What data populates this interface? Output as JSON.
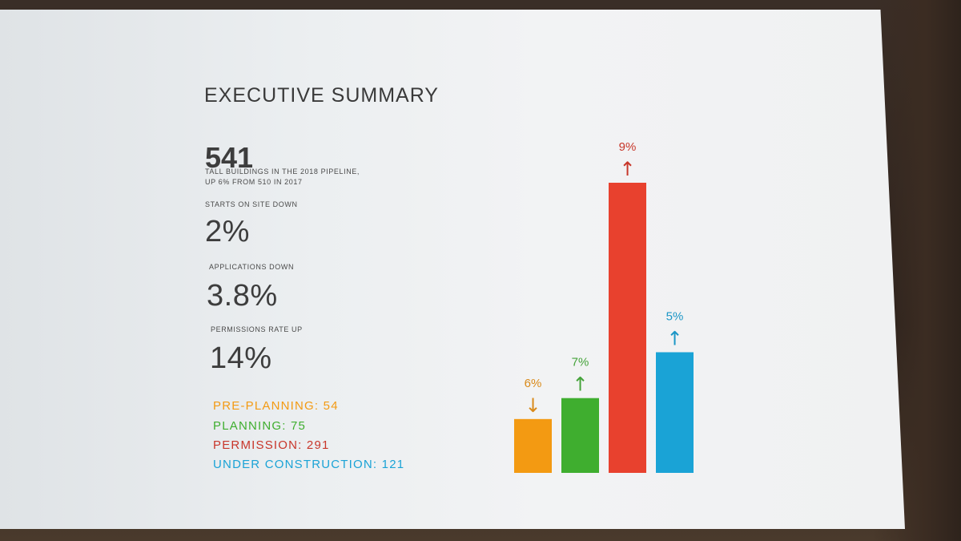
{
  "slide": {
    "title": "EXECUTIVE SUMMARY",
    "headline_number": "541",
    "headline_caption_1": "TALL BUILDINGS IN THE 2018 PIPELINE,",
    "headline_caption_2": "UP 6% FROM 510 IN 2017",
    "stats": [
      {
        "label": "STARTS ON SITE DOWN",
        "value": "2%"
      },
      {
        "label": "APPLICATIONS DOWN",
        "value": "3.8%"
      },
      {
        "label": "PERMISSIONS RATE UP",
        "value": "14%"
      }
    ],
    "legend": [
      {
        "text": "PRE-PLANNING: 54",
        "color": "#f39a12"
      },
      {
        "text": "PLANNING: 75",
        "color": "#3fae2f"
      },
      {
        "text": "PERMISSION: 291",
        "color": "#c8362a"
      },
      {
        "text": "UNDER CONSTRUCTION: 121",
        "color": "#1aa3d6"
      }
    ]
  },
  "chart_data": {
    "type": "bar",
    "title": "",
    "xlabel": "",
    "ylabel": "",
    "categories": [
      "PRE-PLANNING",
      "PLANNING",
      "PERMISSION",
      "UNDER CONSTRUCTION"
    ],
    "values": [
      54,
      75,
      291,
      121
    ],
    "ylim": [
      0,
      291
    ],
    "grid": false,
    "legend": "left",
    "annotations": [
      {
        "category": "PRE-PLANNING",
        "change": "6%",
        "direction": "down"
      },
      {
        "category": "PLANNING",
        "change": "7%",
        "direction": "up"
      },
      {
        "category": "PERMISSION",
        "change": "9%",
        "direction": "up"
      },
      {
        "category": "UNDER CONSTRUCTION",
        "change": "5%",
        "direction": "up"
      }
    ],
    "colors": [
      "#f39a12",
      "#3fae2f",
      "#e8412e",
      "#1aa3d6"
    ],
    "label_colors": [
      "#d98a1a",
      "#45a33a",
      "#c8362a",
      "#1b96c6"
    ]
  }
}
